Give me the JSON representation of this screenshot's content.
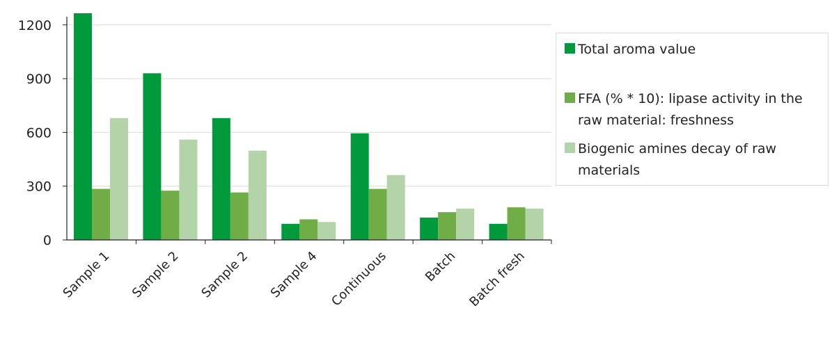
{
  "chart_data": {
    "type": "bar",
    "categories": [
      "Sample 1",
      "Sample 2",
      "Sample 2",
      "Sample 4",
      "Continuous",
      "Batch",
      "Batch fresh"
    ],
    "series": [
      {
        "name": "Total aroma value",
        "color": "#009a3d",
        "values": [
          1265,
          930,
          680,
          90,
          595,
          125,
          90
        ]
      },
      {
        "name": "FFA (% * 10):  lipase activity in the raw material: freshness",
        "color": "#70ad47",
        "values": [
          285,
          275,
          265,
          115,
          285,
          155,
          182
        ]
      },
      {
        "name": "Biogenic amines decay of raw materials",
        "color": "#b3d4a8",
        "values": [
          680,
          560,
          498,
          100,
          362,
          175,
          175
        ]
      }
    ],
    "ylim": [
      0,
      1300
    ],
    "yticks": [
      0,
      300,
      600,
      900,
      1200
    ],
    "grid": true,
    "legend_position": "right",
    "title": "",
    "xlabel": "",
    "ylabel": ""
  }
}
